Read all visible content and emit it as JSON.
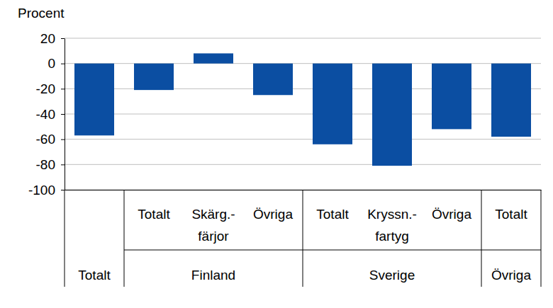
{
  "chart_data": {
    "type": "bar",
    "y_label": "Procent",
    "categories": [
      null,
      "Totalt",
      "Skärg.-färjor",
      "Övriga",
      "Totalt",
      "Kryssn.-fartyg",
      "Övriga",
      "Totalt"
    ],
    "groups": [
      {
        "label": "Totalt",
        "count": 1
      },
      {
        "label": "Finland",
        "count": 3
      },
      {
        "label": "Sverige",
        "count": 3
      },
      {
        "label": "Övriga",
        "count": 1
      }
    ],
    "values": [
      -57,
      -21,
      8,
      -25,
      -64,
      -81,
      -52,
      -58
    ],
    "color": "#0b4ea2",
    "ylim": [
      -100,
      20
    ],
    "yticks": [
      -100,
      -80,
      -60,
      -40,
      -20,
      0,
      20
    ],
    "grid": true
  }
}
